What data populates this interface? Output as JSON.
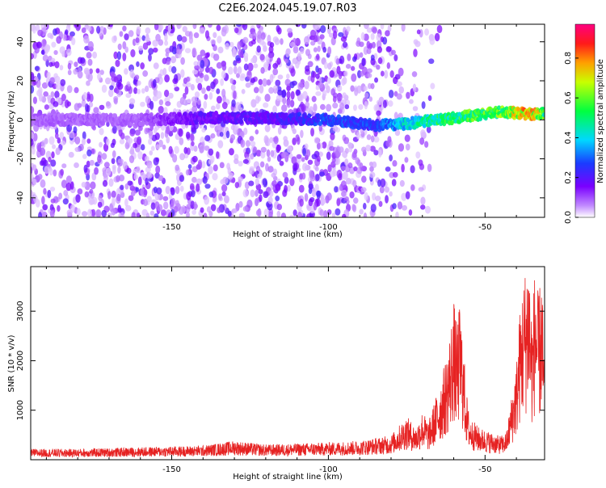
{
  "title": "C2E6.2024.045.19.07.R03",
  "colors": {
    "snr_line": "#e62222",
    "axis": "#000000",
    "background": "#ffffff"
  },
  "chart_data": [
    {
      "type": "heatmap",
      "title": "",
      "xlabel": "Height of straight line (km)",
      "ylabel": "Frequency (Hz)",
      "xlim": [
        -195,
        -31
      ],
      "ylim": [
        -50,
        49
      ],
      "xticks": [
        -150,
        -100,
        -50
      ],
      "yticks": [
        -40,
        -20,
        0,
        20,
        40
      ],
      "colorbar": {
        "label": "Normalized spectral amplitude",
        "range": [
          0,
          0.97
        ],
        "ticks": [
          0.0,
          0.2,
          0.4,
          0.6,
          0.8
        ],
        "colormap": "rainbow (white-violet-blue-cyan-green-yellow-red-magenta)"
      },
      "grid": false,
      "ridge": {
        "description": "tone near 0 Hz, strengthening toward higher heights",
        "x": [
          -195,
          -160,
          -140,
          -120,
          -100,
          -85,
          -75,
          -65,
          -55,
          -45,
          -35,
          -31
        ],
        "frequency_hz": [
          0,
          0,
          1,
          1,
          0,
          -3,
          -2,
          0,
          2,
          4,
          3,
          3
        ],
        "amplitude": [
          0.1,
          0.1,
          0.2,
          0.2,
          0.3,
          0.3,
          0.45,
          0.55,
          0.6,
          0.65,
          0.85,
          0.6
        ]
      }
    },
    {
      "type": "line",
      "title": "",
      "xlabel": "Height of straight line (km)",
      "ylabel": "SNR (10 * v/v)",
      "xlim": [
        -195,
        -31
      ],
      "ylim": [
        0,
        3900
      ],
      "xticks": [
        -150,
        -100,
        -50
      ],
      "yticks": [
        1000,
        2000,
        3000
      ],
      "grid": false,
      "series": [
        {
          "x": [
            -195,
            -180,
            -160,
            -140,
            -130,
            -120,
            -110,
            -100,
            -90,
            -85,
            -80,
            -75,
            -72,
            -70,
            -68,
            -66,
            -64,
            -62,
            -61,
            -60,
            -59,
            -58,
            -57,
            -56,
            -55,
            -52,
            -50,
            -48,
            -46,
            -44,
            -43,
            -42,
            -40,
            -39,
            -38,
            -37,
            -36,
            -35,
            -34,
            -33,
            -32,
            -31
          ],
          "values": [
            200,
            200,
            230,
            260,
            350,
            280,
            300,
            320,
            350,
            400,
            450,
            800,
            600,
            900,
            700,
            1100,
            1500,
            2000,
            2450,
            2950,
            2500,
            2900,
            2200,
            1300,
            800,
            600,
            550,
            500,
            450,
            450,
            550,
            1000,
            1800,
            2700,
            3200,
            3600,
            3900,
            2600,
            3700,
            3000,
            3500,
            1800
          ]
        }
      ]
    }
  ]
}
